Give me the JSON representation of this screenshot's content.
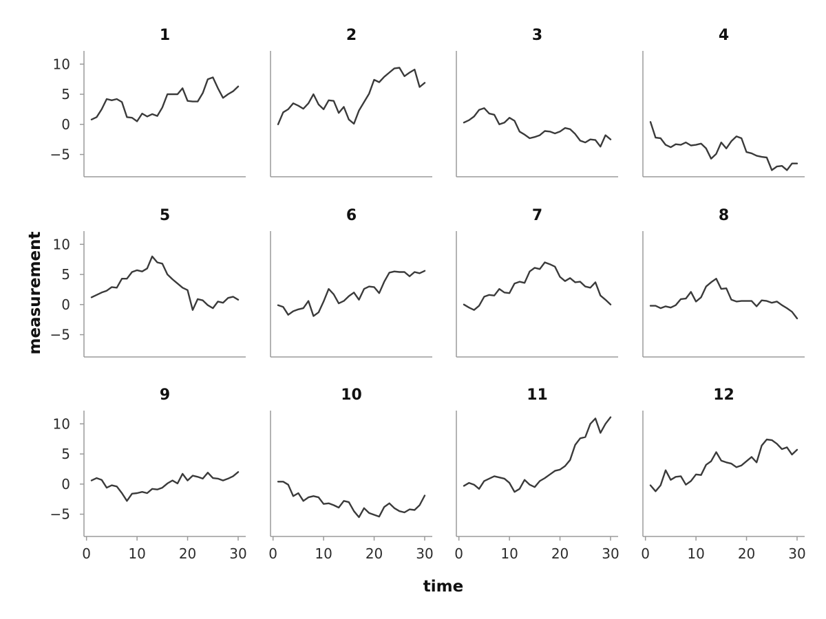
{
  "chart_data": {
    "type": "line",
    "layout": "small-multiples 3x4",
    "xlabel": "time",
    "ylabel": "measurement",
    "xlim": [
      -0.5,
      31.5
    ],
    "ylim": [
      -8.7,
      12.2
    ],
    "xticks": [
      0,
      10,
      20,
      30
    ],
    "yticks": [
      10,
      5,
      0,
      -5
    ],
    "xtick_labels": [
      "0",
      "10",
      "20",
      "30"
    ],
    "ytick_labels": [
      "10",
      "5",
      "0",
      "−5"
    ],
    "x": [
      1,
      2,
      3,
      4,
      5,
      6,
      7,
      8,
      9,
      10,
      11,
      12,
      13,
      14,
      15,
      16,
      17,
      18,
      19,
      20,
      21,
      22,
      23,
      24,
      25,
      26,
      27,
      28,
      29,
      30
    ],
    "panels": [
      {
        "title": "1",
        "values": [
          0.8,
          1.2,
          2.5,
          4.2,
          4.0,
          4.2,
          3.7,
          1.2,
          1.1,
          0.5,
          1.8,
          1.3,
          1.7,
          1.4,
          2.8,
          5.0,
          5.0,
          5.0,
          6.0,
          3.9,
          3.8,
          3.8,
          5.2,
          7.5,
          7.8,
          6.0,
          4.4,
          5.0,
          5.5,
          6.3
        ]
      },
      {
        "title": "2",
        "values": [
          0.0,
          2.0,
          2.5,
          3.5,
          3.1,
          2.6,
          3.5,
          5.0,
          3.3,
          2.5,
          4.0,
          3.9,
          1.9,
          2.9,
          0.8,
          0.1,
          2.3,
          3.7,
          5.1,
          7.4,
          7.0,
          7.9,
          8.6,
          9.3,
          9.4,
          8.0,
          8.6,
          9.1,
          6.2,
          6.9
        ]
      },
      {
        "title": "3",
        "values": [
          0.3,
          0.7,
          1.3,
          2.4,
          2.7,
          1.8,
          1.6,
          0.0,
          0.3,
          1.1,
          0.6,
          -1.2,
          -1.7,
          -2.3,
          -2.1,
          -1.8,
          -1.1,
          -1.2,
          -1.5,
          -1.2,
          -0.6,
          -0.8,
          -1.6,
          -2.7,
          -3.0,
          -2.5,
          -2.6,
          -3.7,
          -1.8,
          -2.5
        ]
      },
      {
        "title": "4",
        "values": [
          0.4,
          -2.2,
          -2.3,
          -3.4,
          -3.8,
          -3.3,
          -3.4,
          -3.0,
          -3.5,
          -3.4,
          -3.2,
          -4.0,
          -5.7,
          -4.9,
          -3.0,
          -4.0,
          -2.8,
          -2.0,
          -2.3,
          -4.6,
          -4.8,
          -5.2,
          -5.4,
          -5.5,
          -7.6,
          -7.0,
          -6.9,
          -7.6,
          -6.5,
          -6.5
        ]
      },
      {
        "title": "5",
        "values": [
          1.2,
          1.6,
          2.0,
          2.3,
          2.9,
          2.8,
          4.3,
          4.3,
          5.4,
          5.7,
          5.5,
          6.0,
          8.0,
          7.0,
          6.8,
          5.0,
          4.2,
          3.5,
          2.8,
          2.4,
          -0.9,
          0.9,
          0.7,
          -0.1,
          -0.6,
          0.5,
          0.3,
          1.1,
          1.3,
          0.8
        ]
      },
      {
        "title": "6",
        "values": [
          -0.1,
          -0.4,
          -1.7,
          -1.1,
          -0.8,
          -0.6,
          0.6,
          -1.9,
          -1.3,
          0.5,
          2.6,
          1.7,
          0.2,
          0.6,
          1.4,
          2.0,
          0.8,
          2.6,
          3.0,
          2.9,
          1.9,
          3.8,
          5.3,
          5.5,
          5.4,
          5.4,
          4.7,
          5.4,
          5.2,
          5.6
        ]
      },
      {
        "title": "7",
        "values": [
          0.0,
          -0.5,
          -0.9,
          -0.2,
          1.3,
          1.6,
          1.5,
          2.6,
          2.0,
          1.9,
          3.5,
          3.8,
          3.6,
          5.5,
          6.1,
          5.9,
          7.0,
          6.7,
          6.3,
          4.6,
          3.9,
          4.4,
          3.7,
          3.8,
          3.0,
          2.8,
          3.7,
          1.5,
          0.8,
          0.0
        ]
      },
      {
        "title": "8",
        "values": [
          -0.2,
          -0.2,
          -0.6,
          -0.3,
          -0.5,
          -0.1,
          0.9,
          1.0,
          2.1,
          0.5,
          1.2,
          3.0,
          3.7,
          4.3,
          2.6,
          2.7,
          0.8,
          0.5,
          0.6,
          0.6,
          0.6,
          -0.3,
          0.7,
          0.6,
          0.3,
          0.5,
          -0.1,
          -0.6,
          -1.2,
          -2.3
        ]
      },
      {
        "title": "9",
        "values": [
          0.6,
          1.0,
          0.7,
          -0.6,
          -0.2,
          -0.4,
          -1.5,
          -2.8,
          -1.6,
          -1.5,
          -1.3,
          -1.5,
          -0.8,
          -0.9,
          -0.6,
          0.1,
          0.6,
          0.1,
          1.7,
          0.6,
          1.4,
          1.2,
          0.9,
          1.9,
          1.0,
          0.9,
          0.6,
          0.9,
          1.3,
          2.0
        ]
      },
      {
        "title": "10",
        "values": [
          0.4,
          0.4,
          -0.1,
          -2.0,
          -1.5,
          -2.8,
          -2.2,
          -2.0,
          -2.2,
          -3.3,
          -3.2,
          -3.5,
          -3.9,
          -2.8,
          -3.0,
          -4.5,
          -5.5,
          -4.0,
          -4.8,
          -5.1,
          -5.4,
          -3.8,
          -3.2,
          -4.0,
          -4.5,
          -4.7,
          -4.2,
          -4.3,
          -3.5,
          -1.9
        ]
      },
      {
        "title": "11",
        "values": [
          -0.3,
          0.2,
          -0.1,
          -0.8,
          0.5,
          0.9,
          1.3,
          1.1,
          0.9,
          0.2,
          -1.3,
          -0.8,
          0.7,
          -0.1,
          -0.5,
          0.5,
          1.0,
          1.6,
          2.2,
          2.4,
          3.0,
          4.0,
          6.5,
          7.6,
          7.8,
          10.0,
          10.9,
          8.5,
          10.0,
          11.1
        ]
      },
      {
        "title": "12",
        "values": [
          -0.2,
          -1.2,
          -0.2,
          2.3,
          0.7,
          1.2,
          1.3,
          -0.1,
          0.5,
          1.6,
          1.5,
          3.2,
          3.8,
          5.3,
          3.9,
          3.6,
          3.4,
          2.8,
          3.1,
          3.8,
          4.5,
          3.6,
          6.4,
          7.4,
          7.3,
          6.7,
          5.8,
          6.1,
          4.9,
          5.7
        ]
      }
    ]
  },
  "colors": {
    "line": "#3a3a3a",
    "axis": "#9a9a9a",
    "text": "#111111"
  }
}
